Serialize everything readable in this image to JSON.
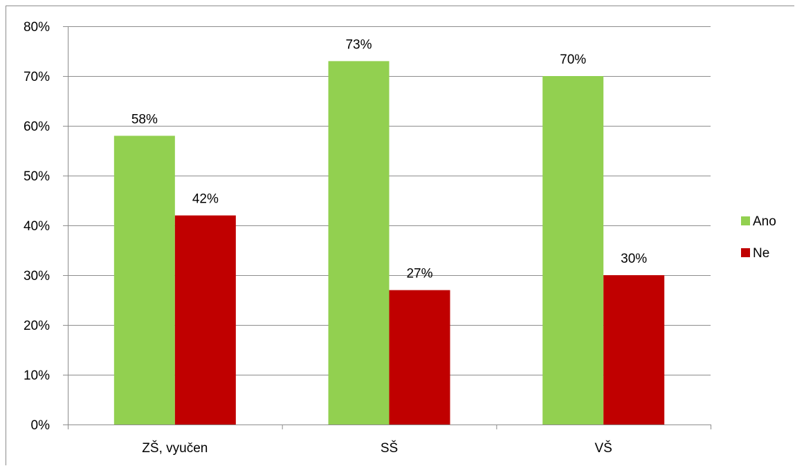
{
  "chart_data": {
    "type": "bar",
    "categories": [
      "ZŠ, vyučen",
      "SŠ",
      "VŠ"
    ],
    "series": [
      {
        "name": "Ano",
        "values": [
          58,
          73,
          70
        ],
        "color": "#92d050"
      },
      {
        "name": "Ne",
        "values": [
          42,
          27,
          30
        ],
        "color": "#c00000"
      }
    ],
    "data_labels": [
      [
        "58%",
        "73%",
        "70%"
      ],
      [
        "42%",
        "27%",
        "30%"
      ]
    ],
    "y_ticks": [
      0,
      10,
      20,
      30,
      40,
      50,
      60,
      70,
      80
    ],
    "y_tick_labels": [
      "0%",
      "10%",
      "20%",
      "30%",
      "40%",
      "50%",
      "60%",
      "70%",
      "80%"
    ],
    "ylim": [
      0,
      80
    ],
    "grid": true,
    "legend_position": "right",
    "title": "",
    "xlabel": "",
    "ylabel": "",
    "gridline_color": "#8c8c8c",
    "axis_color": "#8c8c8c"
  }
}
